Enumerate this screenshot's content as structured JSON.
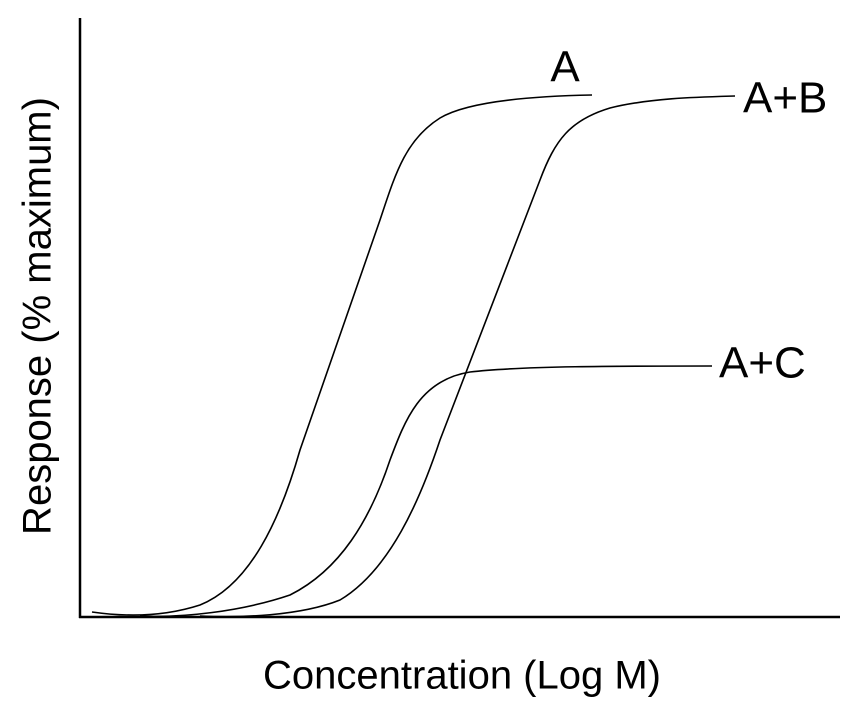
{
  "axes": {
    "x_label": "Concentration (Log M)",
    "y_label": "Response (% maximum)"
  },
  "curves": [
    {
      "label": "A"
    },
    {
      "label": "A+B"
    },
    {
      "label": "A+C"
    }
  ]
}
